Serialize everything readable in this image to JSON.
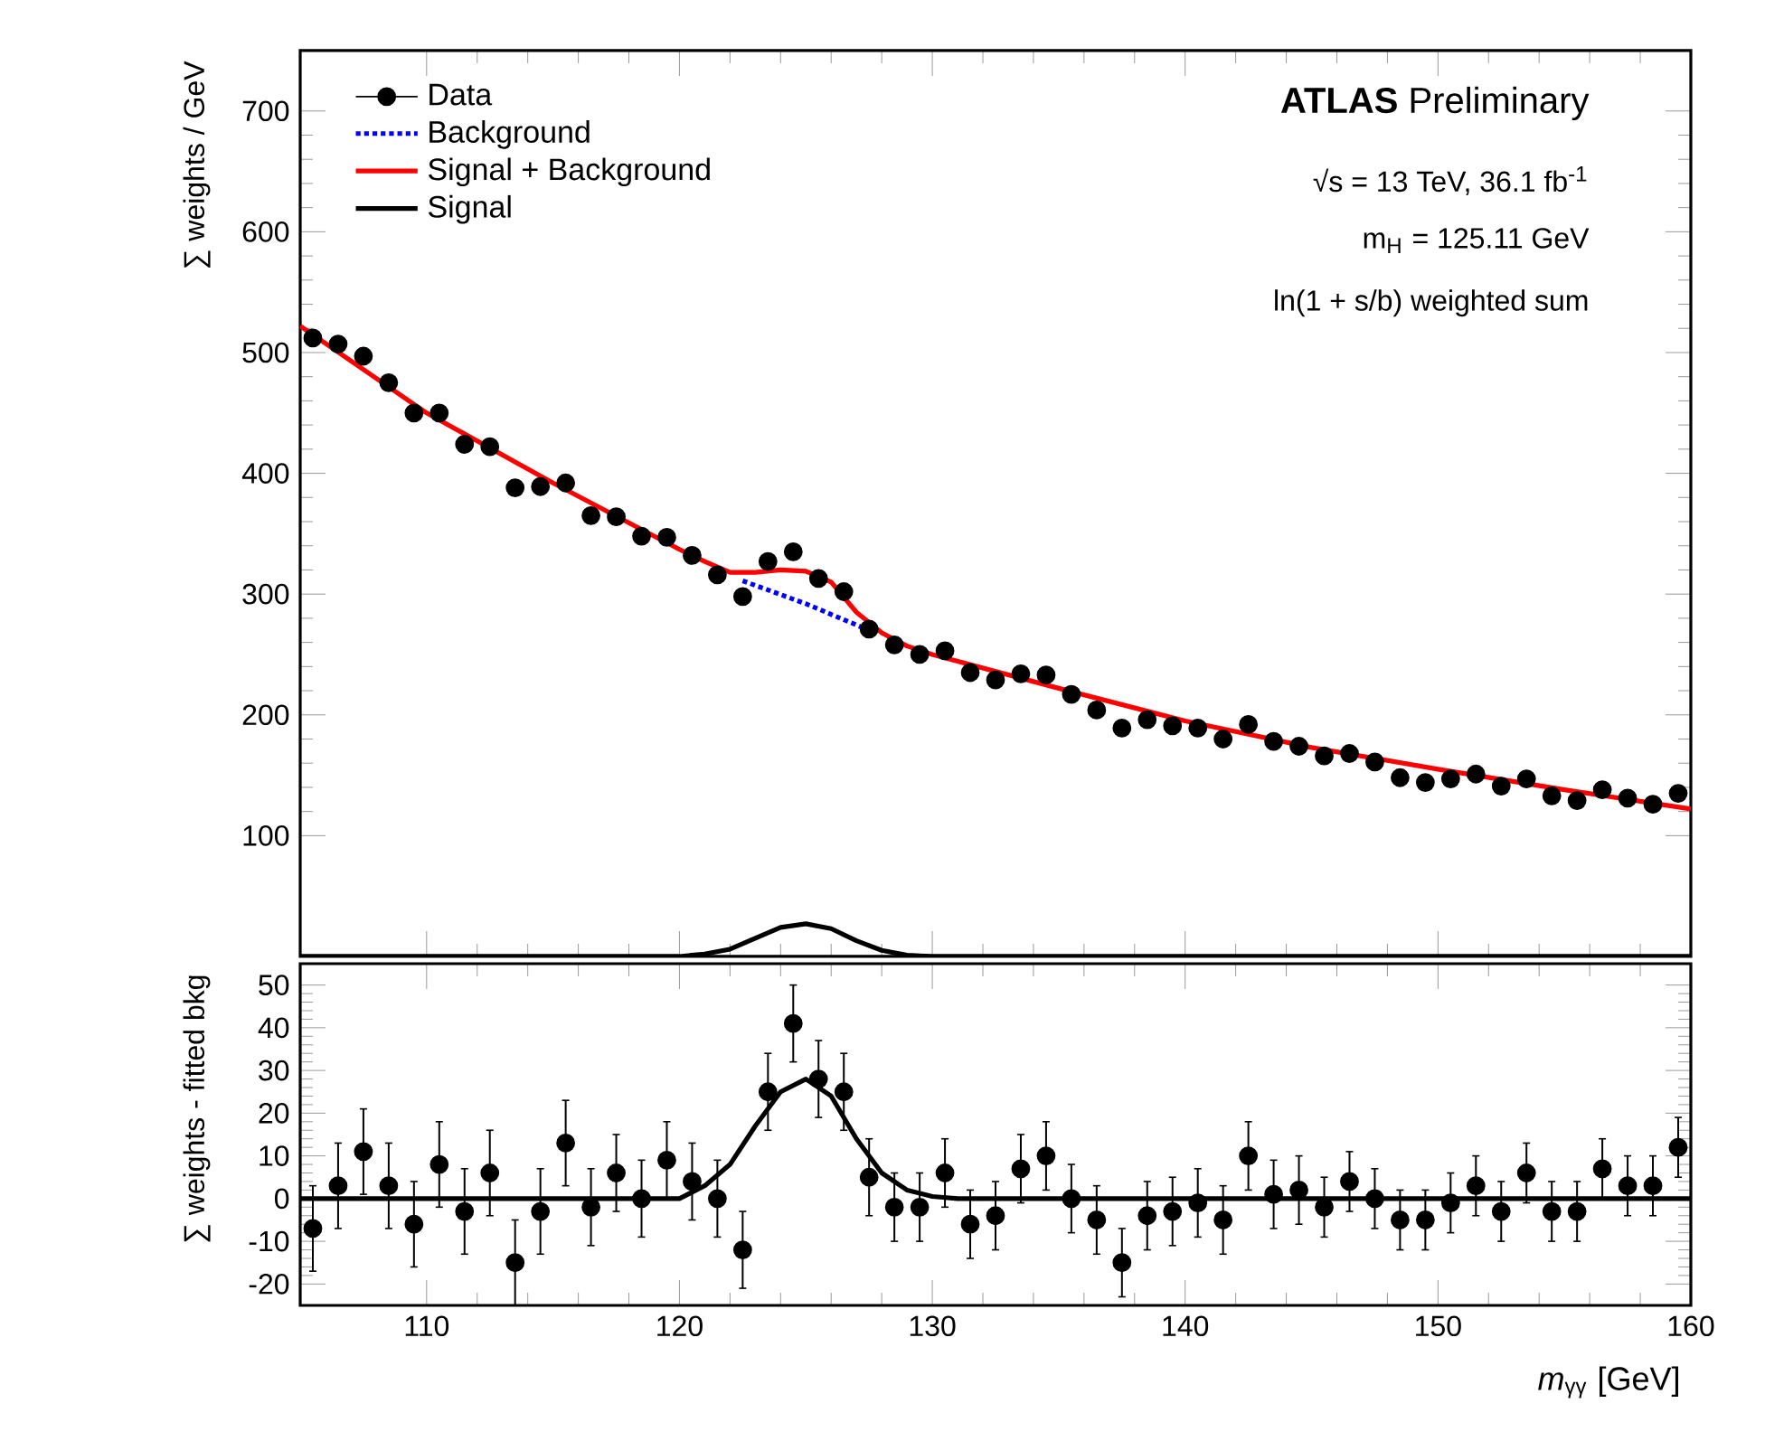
{
  "chart_data": [
    {
      "type": "scatter",
      "ylabel": "∑ weights / GeV",
      "xlim": [
        105,
        160
      ],
      "ylim": [
        0,
        750
      ],
      "xticks": [
        110,
        120,
        130,
        140,
        150,
        160
      ],
      "yticks": [
        100,
        200,
        300,
        400,
        500,
        600,
        700
      ],
      "tick_labels": "y",
      "legend": "top left",
      "annotations": [
        "**ATLAS** Preliminary",
        "√s = 13 TeV, 36.1 fb$^{-1}$",
        "m$_{H}$ = 125.11 GeV",
        "ln(1 + s/b) weighted sum"
      ],
      "series": [
        {
          "name": "Data",
          "marker": "circle",
          "color": "#000000",
          "x": [
            105.5,
            106.5,
            107.5,
            108.5,
            109.5,
            110.5,
            111.5,
            112.5,
            113.5,
            114.5,
            115.5,
            116.5,
            117.5,
            118.5,
            119.5,
            120.5,
            121.5,
            122.5,
            123.5,
            124.5,
            125.5,
            126.5,
            127.5,
            128.5,
            129.5,
            130.5,
            131.5,
            132.5,
            133.5,
            134.5,
            135.5,
            136.5,
            137.5,
            138.5,
            139.5,
            140.5,
            141.5,
            142.5,
            143.5,
            144.5,
            145.5,
            146.5,
            147.5,
            148.5,
            149.5,
            150.5,
            151.5,
            152.5,
            153.5,
            154.5,
            155.5,
            156.5,
            157.5,
            158.5,
            159.5
          ],
          "values": [
            512,
            507,
            497,
            475,
            450,
            450,
            424,
            422,
            388,
            389,
            392,
            365,
            364,
            348,
            347,
            332,
            316,
            298,
            327,
            335,
            313,
            302,
            271,
            258,
            250,
            253,
            235,
            229,
            234,
            233,
            217,
            204,
            189,
            196,
            191,
            189,
            180,
            192,
            178,
            174,
            166,
            168,
            161,
            148,
            144,
            147,
            151,
            141,
            147,
            133,
            129,
            138,
            131,
            126,
            135
          ]
        },
        {
          "name": "Background",
          "type": "line",
          "line_style": "dotted",
          "color": "#0000ff",
          "x": [
            122.5,
            125,
            127.5
          ],
          "values": [
            311,
            292,
            270
          ]
        },
        {
          "name": "Signal + Background",
          "type": "line",
          "line_style": "solid",
          "color": "#ff0000",
          "x": [
            105,
            110,
            115,
            120,
            121,
            122,
            123,
            124,
            125,
            126,
            127,
            128,
            129,
            130,
            135,
            140,
            145,
            150,
            155,
            160
          ],
          "values": [
            522,
            450,
            392,
            337,
            327,
            318,
            318,
            320,
            319,
            310,
            285,
            268,
            257,
            250,
            222,
            195,
            173,
            155,
            138,
            122
          ]
        },
        {
          "name": "Signal",
          "type": "line",
          "line_style": "solid",
          "color": "#000000",
          "x": [
            105,
            120,
            121,
            122,
            123,
            124,
            125,
            126,
            127,
            128,
            129,
            130,
            160
          ],
          "values": [
            0,
            0,
            2,
            6,
            15,
            24,
            27,
            23,
            13,
            5,
            1,
            0,
            0
          ]
        }
      ]
    },
    {
      "type": "scatter",
      "ylabel": "∑ weights - fitted bkg",
      "xlabel": "*m*$_{γγ}$ [GeV]",
      "xlim": [
        105,
        160
      ],
      "ylim": [
        -25,
        55
      ],
      "xticks": [
        110,
        120,
        130,
        140,
        150,
        160
      ],
      "yticks": [
        -20,
        -10,
        0,
        10,
        20,
        30,
        40,
        50
      ],
      "series": [
        {
          "marker": "circle",
          "color": "#000000",
          "x": [
            105.5,
            106.5,
            107.5,
            108.5,
            109.5,
            110.5,
            111.5,
            112.5,
            113.5,
            114.5,
            115.5,
            116.5,
            117.5,
            118.5,
            119.5,
            120.5,
            121.5,
            122.5,
            123.5,
            124.5,
            125.5,
            126.5,
            127.5,
            128.5,
            129.5,
            130.5,
            131.5,
            132.5,
            133.5,
            134.5,
            135.5,
            136.5,
            137.5,
            138.5,
            139.5,
            140.5,
            141.5,
            142.5,
            143.5,
            144.5,
            145.5,
            146.5,
            147.5,
            148.5,
            149.5,
            150.5,
            151.5,
            152.5,
            153.5,
            154.5,
            155.5,
            156.5,
            157.5,
            158.5,
            159.5
          ],
          "values": [
            -7,
            3,
            11,
            3,
            -6,
            8,
            -3,
            6,
            -15,
            -3,
            13,
            -2,
            6,
            0,
            9,
            4,
            0,
            -12,
            25,
            41,
            28,
            25,
            5,
            -2,
            -2,
            6,
            -6,
            -4,
            7,
            10,
            0,
            -5,
            -15,
            -4,
            -3,
            -1,
            -5,
            10,
            1,
            2,
            -2,
            4,
            0,
            -5,
            -5,
            -1,
            3,
            -3,
            6,
            -3,
            -3,
            7,
            3,
            3,
            12
          ],
          "errors": [
            10,
            10,
            10,
            10,
            10,
            10,
            10,
            10,
            10,
            10,
            10,
            9,
            9,
            9,
            9,
            9,
            9,
            9,
            9,
            9,
            9,
            9,
            9,
            8,
            8,
            8,
            8,
            8,
            8,
            8,
            8,
            8,
            8,
            8,
            8,
            8,
            8,
            8,
            8,
            8,
            7,
            7,
            7,
            7,
            7,
            7,
            7,
            7,
            7,
            7,
            7,
            7,
            7,
            7,
            7
          ]
        },
        {
          "type": "line",
          "line_style": "solid",
          "color": "#000000",
          "x": [
            105,
            120,
            121,
            122,
            123,
            124,
            125,
            126,
            127,
            128,
            129,
            130,
            131,
            160
          ],
          "values": [
            0,
            0,
            3,
            8,
            17,
            25,
            28,
            24,
            14,
            6,
            2,
            0.5,
            0,
            0
          ]
        }
      ]
    }
  ]
}
